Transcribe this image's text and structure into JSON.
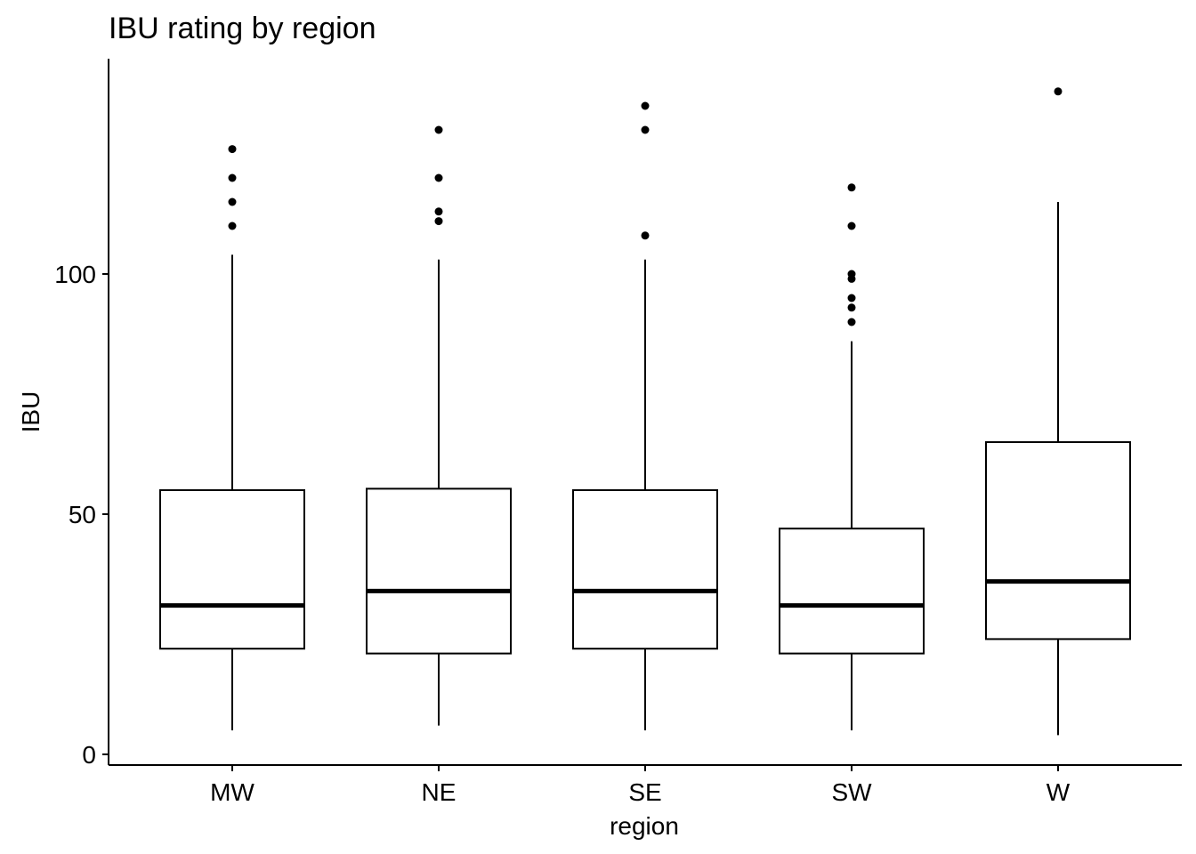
{
  "chart_data": {
    "type": "boxplot",
    "title": "IBU rating by region",
    "xlabel": "region",
    "ylabel": "IBU",
    "ylim": [
      -2,
      145
    ],
    "yticks": [
      0,
      50,
      100
    ],
    "grid": false,
    "categories": [
      "MW",
      "NE",
      "SE",
      "SW",
      "W"
    ],
    "series": [
      {
        "name": "MW",
        "min": 5,
        "q1": 22,
        "median": 31,
        "q3": 55,
        "max": 104,
        "outliers": [
          110,
          115,
          120,
          126
        ]
      },
      {
        "name": "NE",
        "min": 6,
        "q1": 21,
        "median": 34,
        "q3": 55.3,
        "max": 103,
        "outliers": [
          111,
          113,
          120,
          130
        ]
      },
      {
        "name": "SE",
        "min": 5,
        "q1": 22,
        "median": 34,
        "q3": 55,
        "max": 103,
        "outliers": [
          108,
          130,
          135
        ]
      },
      {
        "name": "SW",
        "min": 5,
        "q1": 21,
        "median": 31,
        "q3": 47,
        "max": 86,
        "outliers": [
          90,
          93,
          95,
          99,
          100,
          110,
          118
        ]
      },
      {
        "name": "W",
        "min": 4,
        "q1": 24,
        "median": 36,
        "q3": 65,
        "max": 115,
        "outliers": [
          138
        ]
      }
    ]
  }
}
